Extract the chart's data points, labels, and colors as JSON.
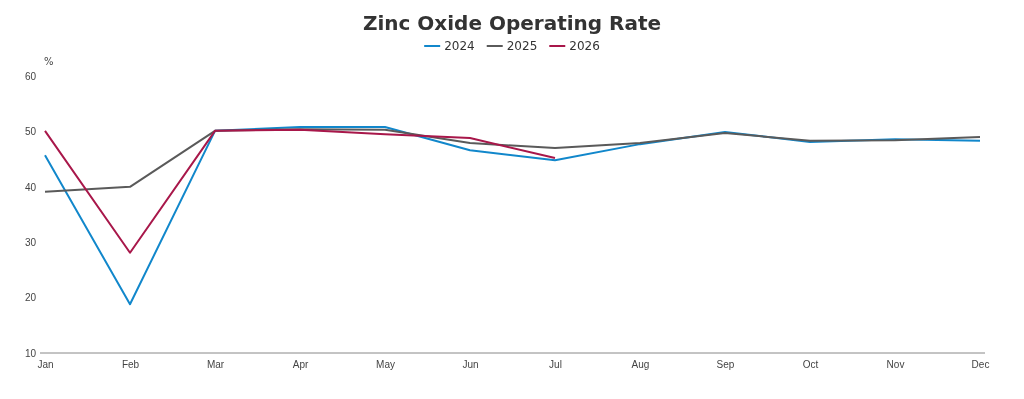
{
  "chart_data": {
    "type": "line",
    "title": "Zinc Oxide Operating Rate",
    "ylabel": "%",
    "categories": [
      "Jan",
      "Feb",
      "Mar",
      "Apr",
      "May",
      "Jun",
      "Jul",
      "Aug",
      "Sep",
      "Oct",
      "Nov",
      "Dec"
    ],
    "series": [
      {
        "name": "2024",
        "color": "#1187cb",
        "values": [
          45.7,
          18.8,
          50.1,
          50.8,
          50.8,
          46.6,
          44.8,
          47.7,
          49.9,
          48.1,
          48.6,
          48.3
        ]
      },
      {
        "name": "2025",
        "color": "#5a5a5a",
        "values": [
          39.1,
          40.0,
          50.1,
          50.4,
          50.3,
          47.9,
          47.0,
          47.9,
          49.7,
          48.3,
          48.4,
          49.0
        ]
      },
      {
        "name": "2026",
        "color": "#a8174a",
        "values": [
          50.1,
          28.1,
          50.1,
          50.3,
          49.5,
          48.8,
          45.2,
          null,
          null,
          null,
          null,
          null
        ]
      }
    ],
    "ylim": [
      10,
      60
    ],
    "yticks": [
      10,
      20,
      30,
      40,
      50,
      60
    ],
    "grid": false,
    "legend": "top",
    "marker": "none",
    "line_style": "solid"
  }
}
